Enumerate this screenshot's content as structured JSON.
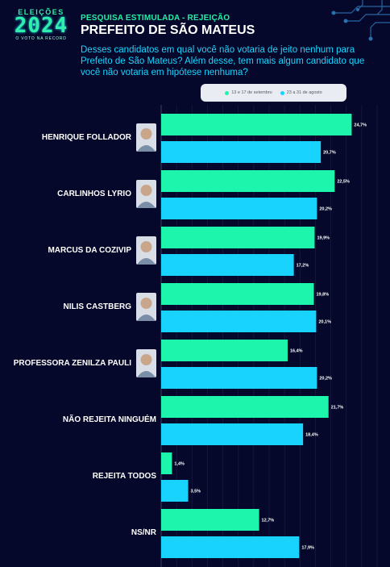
{
  "header": {
    "logo_top": "ELEIÇÕES",
    "logo_year": "2024",
    "logo_sub": "O VOTO NA RECORD",
    "kicker": "PESQUISA ESTIMULADA - REJEIÇÃO",
    "title": "PREFEITO DE SÃO MATEUS",
    "question": "Desses candidatos em qual você não votaria de jeito nenhum para Prefeito de São Mateus? Além desse, tem mais algum candidato que você não votaria em hipótese nenhuma?"
  },
  "colors": {
    "background": "#05082a",
    "series1": "#1ef5ac",
    "series2": "#19d3ff",
    "label": "#ffffff"
  },
  "chart_data": {
    "type": "bar",
    "orientation": "horizontal",
    "categories": [
      "HENRIQUE FOLLADOR",
      "CARLINHOS LYRIO",
      "MARCUS DA COZIVIP",
      "NILIS CASTBERG",
      "PROFESSORA ZENILZA PAULI",
      "NÃO REJEITA NINGUÉM",
      "REJEITA TODOS",
      "NS/NR"
    ],
    "category_has_photo": [
      true,
      true,
      true,
      true,
      true,
      false,
      false,
      false
    ],
    "series": [
      {
        "name": "13 e 17 de setembro",
        "values": [
          24.7,
          22.5,
          19.9,
          19.8,
          16.4,
          21.7,
          1.4,
          12.7
        ],
        "labels": [
          "24,7%",
          "22,5%",
          "19,9%",
          "19,8%",
          "16,4%",
          "21,7%",
          "1,4%",
          "12,7%"
        ]
      },
      {
        "name": "23 a 31 de agosto",
        "values": [
          20.7,
          20.2,
          17.2,
          20.1,
          20.2,
          18.4,
          3.5,
          17.9
        ],
        "labels": [
          "20,7%",
          "20,2%",
          "17,2%",
          "20,1%",
          "20,2%",
          "18,4%",
          "3,5%",
          "17,9%"
        ]
      }
    ],
    "xlim": [
      0,
      28
    ],
    "grid": true,
    "legend_position": "top-center"
  }
}
